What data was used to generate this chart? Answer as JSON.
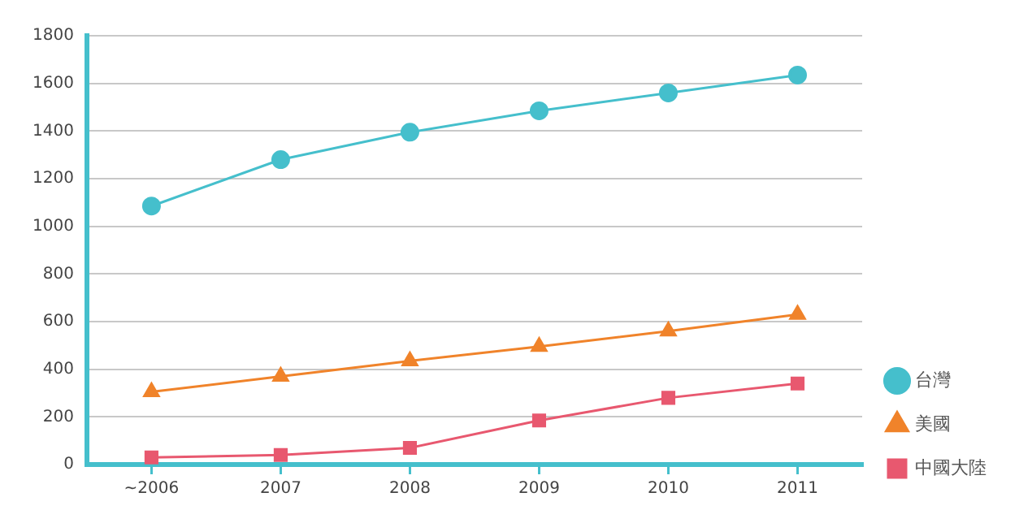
{
  "chart_data": {
    "type": "line",
    "categories": [
      "~2006",
      "2007",
      "2008",
      "2009",
      "2010",
      "2011"
    ],
    "series": [
      {
        "name": "台灣",
        "color": "#45bfcc",
        "marker": "circle",
        "values": [
          1085,
          1280,
          1395,
          1485,
          1560,
          1635
        ]
      },
      {
        "name": "美國",
        "color": "#f0832a",
        "marker": "triangle",
        "values": [
          305,
          370,
          435,
          495,
          560,
          630
        ]
      },
      {
        "name": "中國大陸",
        "color": "#e8586f",
        "marker": "square",
        "values": [
          30,
          40,
          70,
          185,
          280,
          340
        ]
      }
    ],
    "ylim": [
      0,
      1800
    ],
    "yticks": [
      0,
      200,
      400,
      600,
      800,
      1000,
      1200,
      1400,
      1600,
      1800
    ],
    "grid": "y",
    "legend": "bottom right",
    "line_style": "solid"
  }
}
